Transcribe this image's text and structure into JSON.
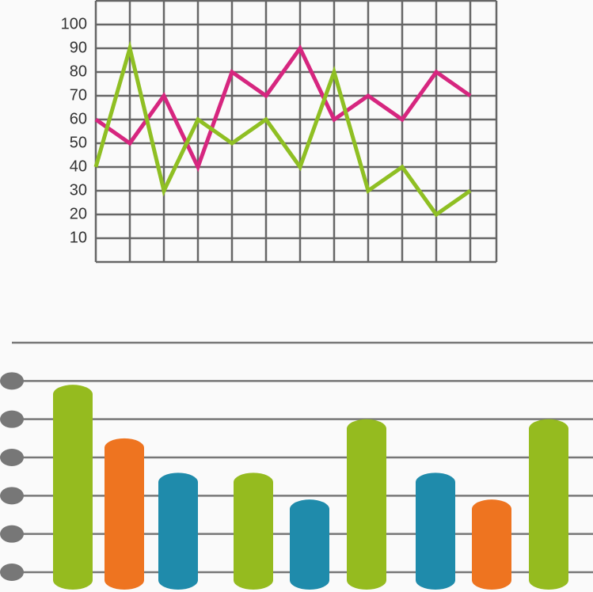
{
  "chart_data": [
    {
      "type": "line",
      "categories": [
        null,
        null,
        null,
        null,
        null,
        null,
        null,
        null,
        null,
        null,
        null,
        null
      ],
      "series": [
        {
          "color": "#d6267f",
          "values": [
            60,
            50,
            70,
            40,
            80,
            70,
            90,
            60,
            70,
            60,
            80,
            70
          ]
        },
        {
          "color": "#8fbf23",
          "values": [
            40,
            90,
            30,
            60,
            50,
            60,
            40,
            80,
            30,
            40,
            20,
            30
          ]
        }
      ],
      "ylim": [
        0,
        110
      ],
      "yticks": [
        10,
        20,
        30,
        40,
        50,
        60,
        70,
        80,
        90,
        100
      ],
      "grid": true
    },
    {
      "type": "bar",
      "categories": [
        null,
        null,
        null,
        null,
        null,
        null,
        null,
        null,
        null
      ],
      "values": [
        4.9,
        3.5,
        2.6,
        2.6,
        1.9,
        4.0,
        2.6,
        1.9,
        4.0
      ],
      "colors": [
        "#95bb1f",
        "#ee7420",
        "#1f8bab",
        "#95bb1f",
        "#1f8bab",
        "#95bb1f",
        "#1f8bab",
        "#ee7420",
        "#95bb1f"
      ],
      "ylim": [
        0,
        6
      ],
      "yticks": [
        0,
        1,
        2,
        3,
        4,
        5,
        6
      ],
      "grid": true
    }
  ]
}
